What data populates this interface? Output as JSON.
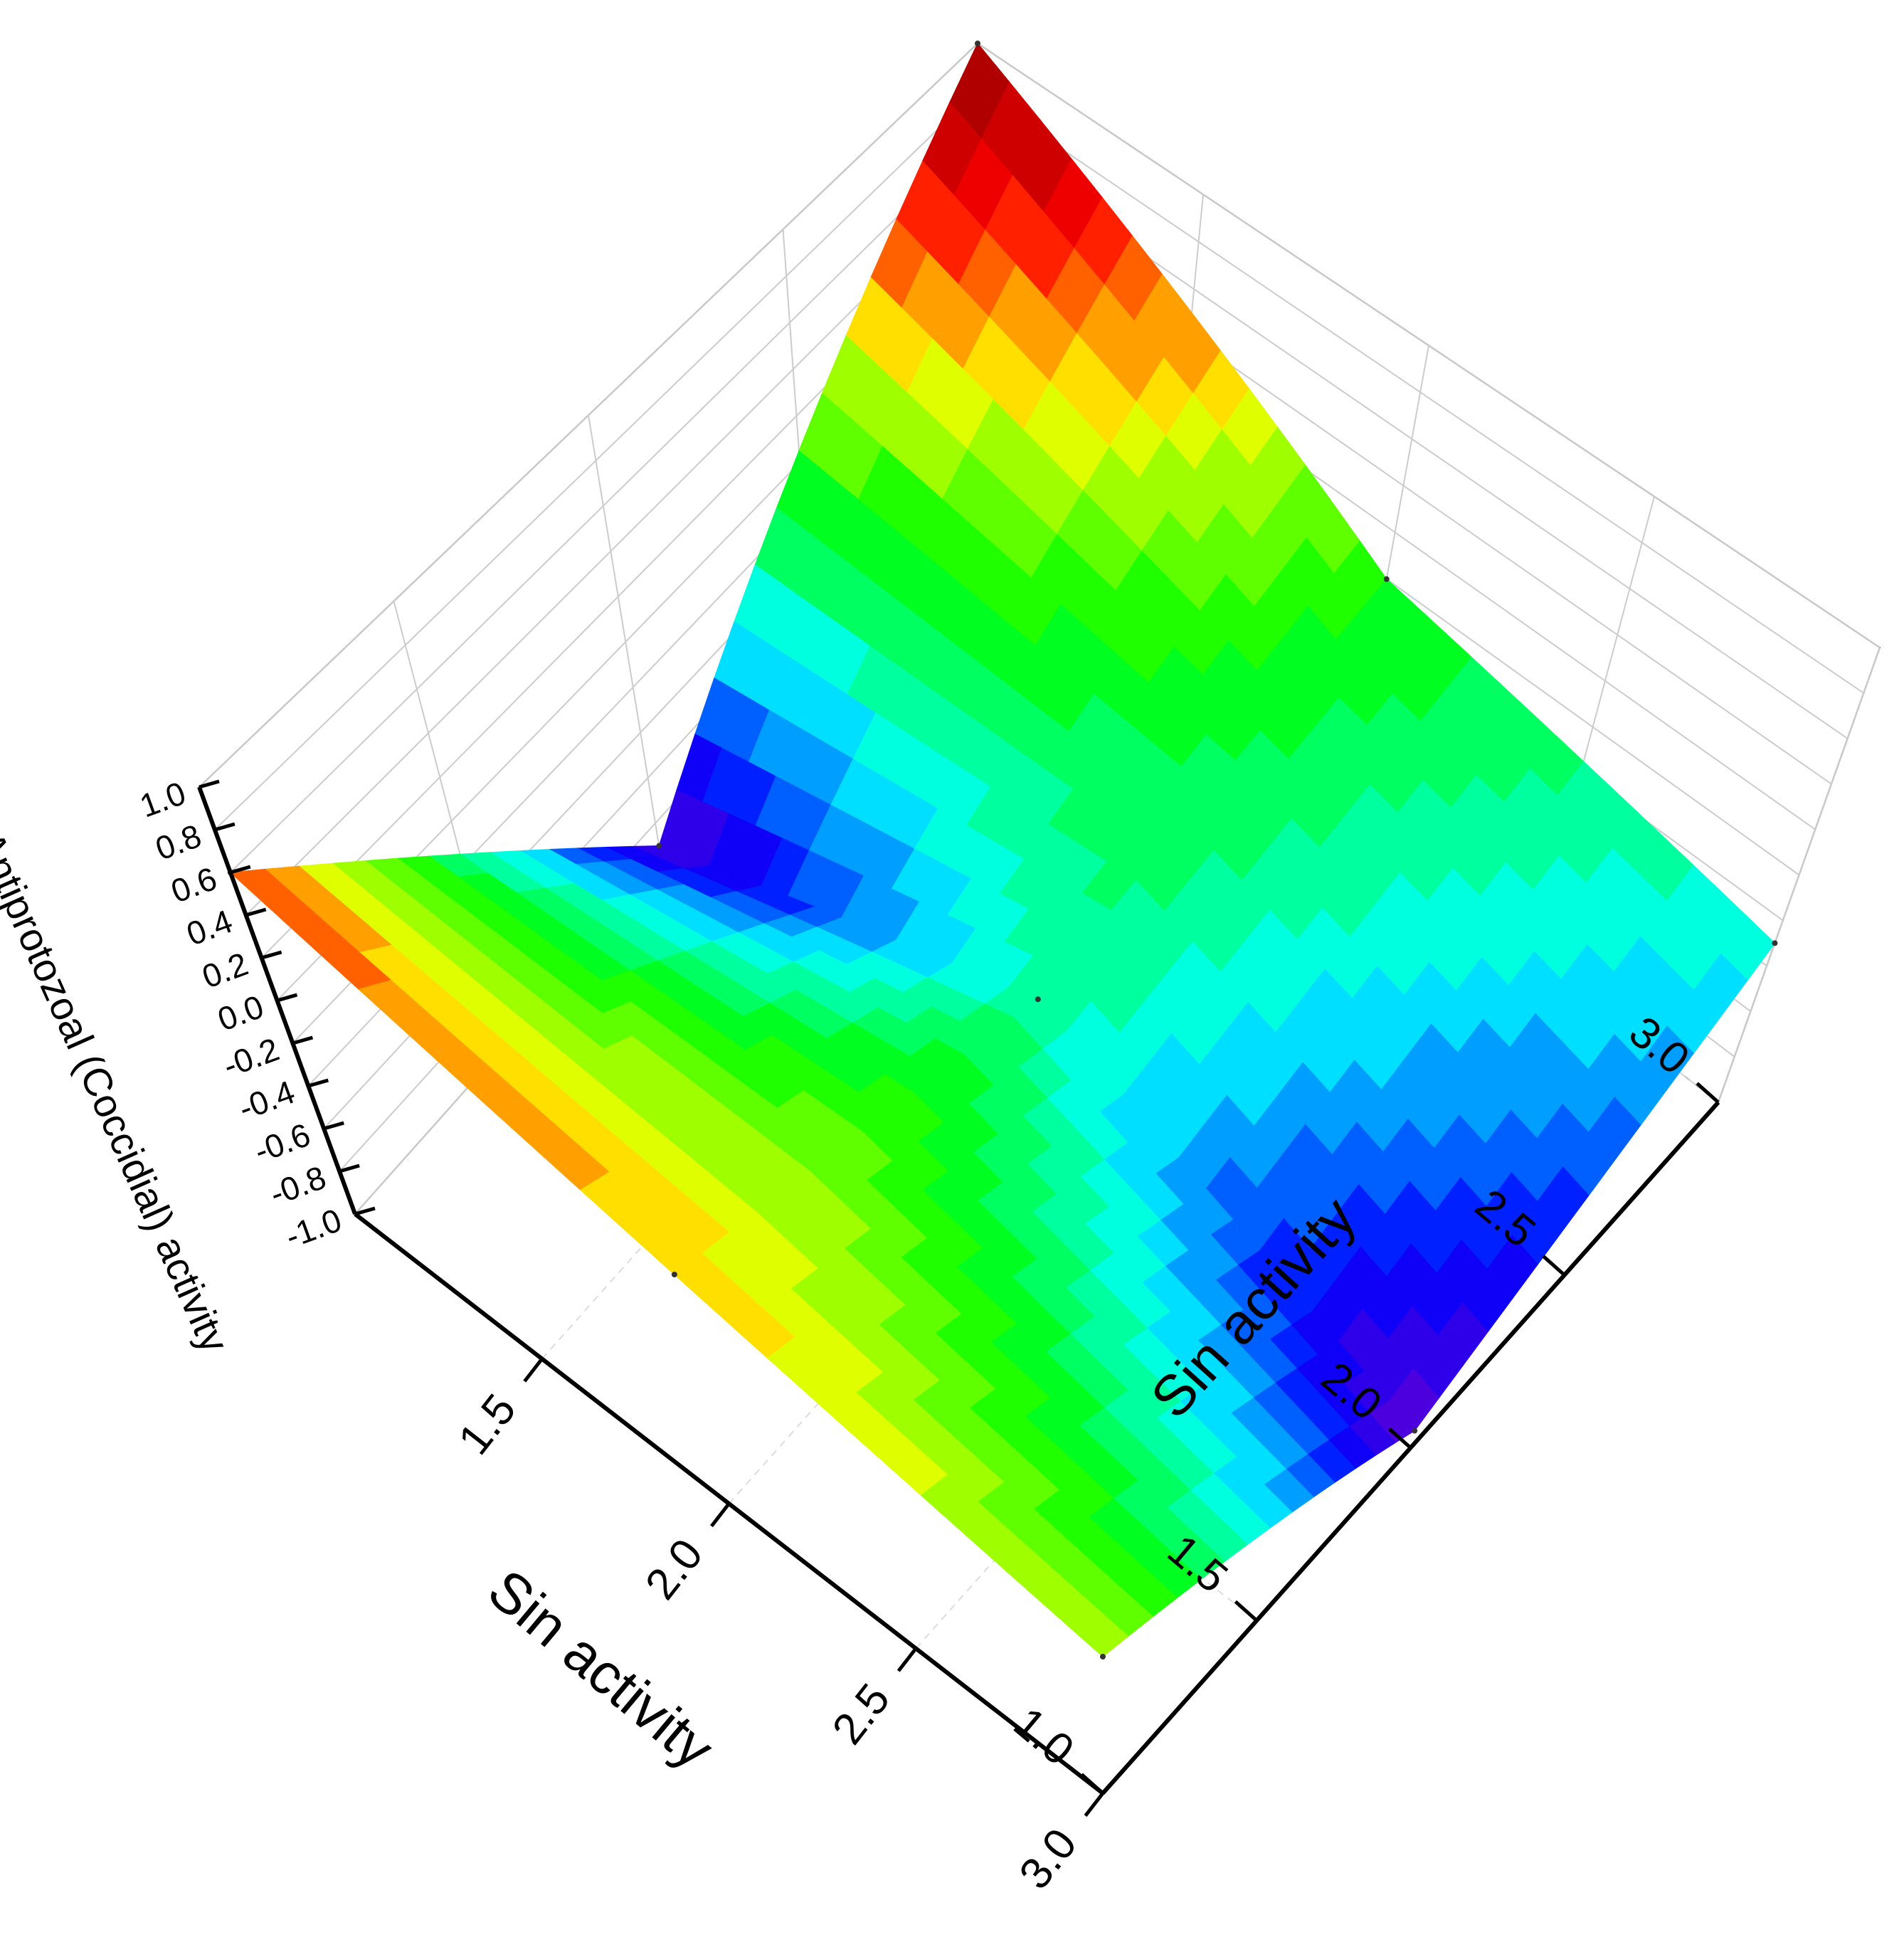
{
  "chart_data": {
    "type": "surface",
    "x_label": "Sin activity",
    "y_label": "Sin activity",
    "z_label": "Antiprotozoal (Coccidial) activity",
    "x": [
      1,
      2,
      3
    ],
    "y": [
      1,
      2,
      3
    ],
    "z": [
      [
        0.6,
        -0.9,
        1.0
      ],
      [
        0.4,
        -0.2,
        0.0
      ],
      [
        0.2,
        -0.9,
        -0.3
      ]
    ],
    "xlim": [
      1,
      3
    ],
    "ylim": [
      1,
      3
    ],
    "zlim": [
      -1,
      1
    ],
    "xticks": [
      1.5,
      {
        "value": 2,
        "label": "2.0"
      },
      2.5,
      {
        "value": 3,
        "label": "3.0"
      }
    ],
    "yticks": [
      {
        "value": 1,
        "label": "1.0"
      },
      1.5,
      {
        "value": 2,
        "label": "2.0"
      },
      2.5,
      {
        "value": 3,
        "label": "3.0"
      }
    ],
    "zticks": [
      {
        "value": -1,
        "label": "-1.0"
      },
      -0.8,
      -0.6,
      -0.4,
      -0.2,
      {
        "value": 0,
        "label": "0.0"
      },
      0.2,
      0.4,
      0.6,
      0.8,
      {
        "value": 1,
        "label": "1.0"
      }
    ],
    "grid": true,
    "colormap": [
      "#7a00c8",
      "#0000ff",
      "#00ffff",
      "#00ff00",
      "#ffff00",
      "#ff0000",
      "#800000"
    ]
  }
}
